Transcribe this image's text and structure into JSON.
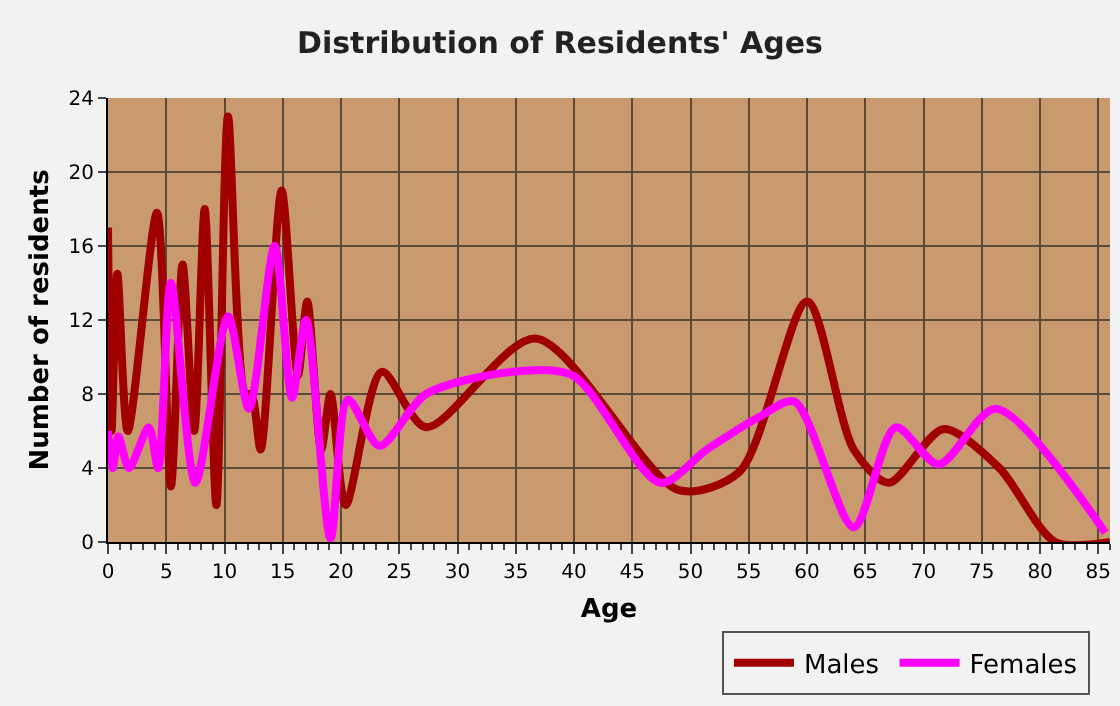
{
  "chart_data": {
    "type": "line",
    "title": "Distribution of Residents' Ages",
    "xlabel": "Age",
    "ylabel": "Number of residents",
    "xlim": [
      0,
      86
    ],
    "xticks": [
      0,
      5,
      10,
      15,
      20,
      25,
      30,
      35,
      40,
      45,
      50,
      55,
      60,
      65,
      70,
      75,
      80,
      85
    ],
    "ylim": [
      0,
      24
    ],
    "yticks": [
      0,
      4,
      8,
      12,
      16,
      20,
      24
    ],
    "grid": true,
    "legend": "bottom",
    "marker": "none",
    "line_style": "solid",
    "series": [
      {
        "name": "Males",
        "color": "#a00000",
        "x": [
          0,
          0.3,
          0.8,
          1.7,
          4.2,
          5.4,
          6.4,
          7.4,
          8.3,
          9.3,
          10.3,
          11.8,
          12.3,
          13.1,
          14.9,
          16.3,
          17.1,
          18.3,
          19.1,
          20.4,
          23.5,
          27.3,
          36.7,
          49,
          54.2,
          60,
          64,
          67,
          71.7,
          76.5,
          81.3,
          86
        ],
        "values": [
          17,
          6,
          14.5,
          6,
          17.8,
          3,
          15,
          6,
          18,
          2,
          23,
          8,
          8,
          5,
          19,
          9,
          13,
          5,
          8,
          2,
          9.2,
          6.2,
          11,
          2.8,
          3.8,
          13,
          5,
          3.2,
          6.1,
          4,
          0,
          0
        ]
      },
      {
        "name": "Females",
        "color": "#ff00ff",
        "x": [
          0,
          0.4,
          0.9,
          1.8,
          3.5,
          4.3,
          5.4,
          7.5,
          10.3,
          12.1,
          14.3,
          15.8,
          17,
          19.1,
          20.6,
          23.3,
          27.3,
          34.7,
          39.9,
          47.4,
          51.4,
          56,
          58.9,
          64,
          67.6,
          71.3,
          76.2,
          85.6
        ],
        "values": [
          6,
          4,
          5.7,
          4,
          6.2,
          4,
          14,
          3.2,
          12.2,
          7.2,
          16,
          7.8,
          12,
          0.2,
          7.7,
          5.2,
          8,
          9.2,
          9,
          3.2,
          5,
          6.8,
          7.6,
          0.8,
          6.2,
          4.2,
          7.2,
          0.5
        ]
      }
    ]
  }
}
